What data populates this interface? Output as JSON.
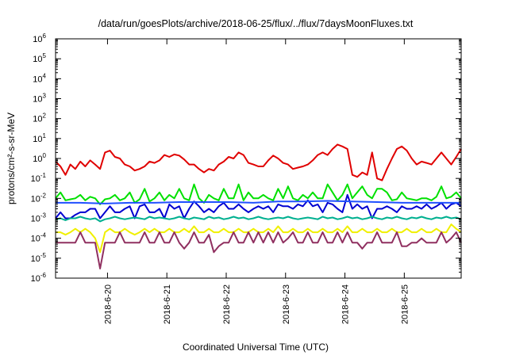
{
  "chart_data": {
    "type": "line",
    "title": "/data/run/goesPlots/archive/2018-06-25/flux/../flux/7daysMoonFluxes.txt",
    "xlabel": "Coordinated Universal Time (UTC)",
    "ylabel": "protons/cm²-s-sr-MeV",
    "y_scale": "log",
    "ylim": [
      1e-06,
      1000000.0
    ],
    "xlim": [
      "2018-06-19 03:00",
      "2018-06-25 23:00"
    ],
    "grid": false,
    "legend": "none",
    "x_ticks": [
      "2018-6-20",
      "2018-6-21",
      "2018-6-22",
      "2018-6-23",
      "2018-6-24",
      "2018-6-25"
    ],
    "y_ticks": [
      {
        "value": 1e-06,
        "base": "10",
        "exp": "-6"
      },
      {
        "value": 1e-05,
        "base": "10",
        "exp": "-5"
      },
      {
        "value": 0.0001,
        "base": "10",
        "exp": "-4"
      },
      {
        "value": 0.001,
        "base": "10",
        "exp": "-3"
      },
      {
        "value": 0.01,
        "base": "10",
        "exp": "-2"
      },
      {
        "value": 0.1,
        "base": "10",
        "exp": "-1"
      },
      {
        "value": 1.0,
        "base": "10",
        "exp": "0"
      },
      {
        "value": 10.0,
        "base": "10",
        "exp": "1"
      },
      {
        "value": 100.0,
        "base": "10",
        "exp": "2"
      },
      {
        "value": 1000.0,
        "base": "10",
        "exp": "3"
      },
      {
        "value": 10000.0,
        "base": "10",
        "exp": "4"
      },
      {
        "value": 100000.0,
        "base": "10",
        "exp": "5"
      },
      {
        "value": 1000000.0,
        "base": "10",
        "exp": "6"
      }
    ],
    "series": [
      {
        "color": "#e00000",
        "x_hours": [
          0,
          2,
          4,
          6,
          8,
          10,
          12,
          14,
          16,
          18,
          20,
          22,
          24,
          26,
          28,
          30,
          32,
          34,
          36,
          38,
          40,
          42,
          44,
          46,
          48,
          50,
          52,
          54,
          56,
          58,
          60,
          62,
          64,
          66,
          68,
          70,
          72,
          74,
          76,
          78,
          80,
          82,
          84,
          86,
          88,
          90,
          92,
          94,
          96,
          98,
          100,
          102,
          104,
          106,
          108,
          110,
          112,
          114,
          116,
          118,
          120,
          122,
          124,
          126,
          128,
          130,
          132,
          134,
          136,
          138,
          140,
          142,
          144,
          146,
          148,
          150,
          152,
          154,
          156,
          158,
          160,
          162,
          164
        ],
        "y": [
          0.7,
          0.4,
          0.15,
          0.5,
          0.3,
          0.7,
          0.4,
          0.8,
          0.5,
          0.3,
          2,
          2.5,
          1.2,
          1,
          0.5,
          0.4,
          0.25,
          0.3,
          0.4,
          0.7,
          0.6,
          0.8,
          1.5,
          1.2,
          1.6,
          1.4,
          0.9,
          0.5,
          0.5,
          0.3,
          0.2,
          0.3,
          0.25,
          0.5,
          0.7,
          1.2,
          1,
          2,
          1.5,
          0.6,
          0.5,
          0.4,
          0.4,
          0.8,
          1.4,
          1,
          0.6,
          0.5,
          0.3,
          0.35,
          0.4,
          0.5,
          0.8,
          1.5,
          2,
          1.5,
          3,
          5,
          4,
          3,
          0.15,
          0.12,
          0.2,
          0.15,
          2,
          0.1,
          0.08,
          0.3,
          1,
          3,
          4,
          2.5,
          1,
          0.5,
          0.7,
          0.6,
          0.5,
          1,
          2,
          1,
          0.5,
          1.2,
          3
        ]
      },
      {
        "color": "#00e000",
        "x_hours": [
          0,
          2,
          4,
          6,
          8,
          10,
          12,
          14,
          16,
          18,
          20,
          22,
          24,
          26,
          28,
          30,
          32,
          34,
          36,
          38,
          40,
          42,
          44,
          46,
          48,
          50,
          52,
          54,
          56,
          58,
          60,
          62,
          64,
          66,
          68,
          70,
          72,
          74,
          76,
          78,
          80,
          82,
          84,
          86,
          88,
          90,
          92,
          94,
          96,
          98,
          100,
          102,
          104,
          106,
          108,
          110,
          112,
          114,
          116,
          118,
          120,
          122,
          124,
          126,
          128,
          130,
          132,
          134,
          136,
          138,
          140,
          142,
          144,
          146,
          148,
          150,
          152,
          154,
          156,
          158,
          160,
          162,
          164
        ],
        "y": [
          0.01,
          0.02,
          0.008,
          0.009,
          0.01,
          0.015,
          0.008,
          0.012,
          0.01,
          0.005,
          0.009,
          0.01,
          0.015,
          0.008,
          0.01,
          0.02,
          0.006,
          0.009,
          0.03,
          0.007,
          0.01,
          0.02,
          0.008,
          0.015,
          0.01,
          0.03,
          0.01,
          0.008,
          0.05,
          0.01,
          0.006,
          0.015,
          0.01,
          0.008,
          0.03,
          0.01,
          0.01,
          0.05,
          0.008,
          0.02,
          0.01,
          0.01,
          0.015,
          0.01,
          0.008,
          0.03,
          0.01,
          0.04,
          0.01,
          0.008,
          0.015,
          0.01,
          0.02,
          0.01,
          0.01,
          0.05,
          0.02,
          0.008,
          0.015,
          0.05,
          0.01,
          0.02,
          0.04,
          0.015,
          0.01,
          0.03,
          0.03,
          0.02,
          0.008,
          0.009,
          0.02,
          0.01,
          0.009,
          0.008,
          0.01,
          0.01,
          0.008,
          0.012,
          0.04,
          0.01,
          0.012,
          0.02,
          0.01
        ]
      },
      {
        "color": "#0000d0",
        "x_hours": [
          0,
          2,
          4,
          6,
          8,
          10,
          12,
          14,
          16,
          18,
          20,
          22,
          24,
          26,
          28,
          30,
          32,
          34,
          36,
          38,
          40,
          42,
          44,
          46,
          48,
          50,
          52,
          54,
          56,
          58,
          60,
          62,
          64,
          66,
          68,
          70,
          72,
          74,
          76,
          78,
          80,
          82,
          84,
          86,
          88,
          90,
          92,
          94,
          96,
          98,
          100,
          102,
          104,
          106,
          108,
          110,
          112,
          114,
          116,
          118,
          120,
          122,
          124,
          126,
          128,
          130,
          132,
          134,
          136,
          138,
          140,
          142,
          144,
          146,
          148,
          150,
          152,
          154,
          156,
          158,
          160,
          162,
          164
        ],
        "y": [
          0.001,
          0.002,
          0.001,
          0.001,
          0.0015,
          0.002,
          0.002,
          0.003,
          0.003,
          0.001,
          0.002,
          0.004,
          0.002,
          0.002,
          0.003,
          0.004,
          0.001,
          0.004,
          0.005,
          0.002,
          0.002,
          0.003,
          0.001,
          0.005,
          0.003,
          0.004,
          0.001,
          0.003,
          0.007,
          0.004,
          0.002,
          0.003,
          0.002,
          0.004,
          0.006,
          0.003,
          0.003,
          0.005,
          0.003,
          0.002,
          0.003,
          0.004,
          0.003,
          0.004,
          0.002,
          0.005,
          0.004,
          0.004,
          0.003,
          0.005,
          0.004,
          0.008,
          0.004,
          0.005,
          0.002,
          0.006,
          0.005,
          0.003,
          0.002,
          0.015,
          0.003,
          0.005,
          0.003,
          0.004,
          0.001,
          0.003,
          0.003,
          0.004,
          0.003,
          0.002,
          0.004,
          0.003,
          0.003,
          0.004,
          0.003,
          0.005,
          0.003,
          0.004,
          0.006,
          0.003,
          0.005,
          0.006,
          0.004
        ]
      },
      {
        "color": "#2050ff",
        "x_hours": [
          0,
          10,
          20,
          30,
          40,
          50,
          60,
          70,
          80,
          90,
          100,
          110,
          120,
          130,
          140,
          150,
          160,
          164
        ],
        "y": [
          0.006,
          0.006,
          0.0055,
          0.006,
          0.006,
          0.0065,
          0.0065,
          0.0065,
          0.006,
          0.007,
          0.007,
          0.0075,
          0.007,
          0.0065,
          0.006,
          0.006,
          0.006,
          0.006
        ]
      },
      {
        "color": "#00b090",
        "x_hours": [
          0,
          2,
          4,
          6,
          8,
          10,
          12,
          14,
          16,
          18,
          20,
          22,
          24,
          26,
          28,
          30,
          32,
          34,
          36,
          38,
          40,
          42,
          44,
          46,
          48,
          50,
          52,
          54,
          56,
          58,
          60,
          62,
          64,
          66,
          68,
          70,
          72,
          74,
          76,
          78,
          80,
          82,
          84,
          86,
          88,
          90,
          92,
          94,
          96,
          98,
          100,
          102,
          104,
          106,
          108,
          110,
          112,
          114,
          116,
          118,
          120,
          122,
          124,
          126,
          128,
          130,
          132,
          134,
          136,
          138,
          140,
          142,
          144,
          146,
          148,
          150,
          152,
          154,
          156,
          158,
          160,
          162,
          164
        ],
        "y": [
          0.0009,
          0.001,
          0.0008,
          0.001,
          0.001,
          0.0012,
          0.001,
          0.0009,
          0.001,
          0.0007,
          0.0009,
          0.001,
          0.0012,
          0.001,
          0.0009,
          0.001,
          0.0011,
          0.001,
          0.0009,
          0.0012,
          0.001,
          0.0011,
          0.001,
          0.0009,
          0.001,
          0.0012,
          0.001,
          0.0009,
          0.0011,
          0.001,
          0.0009,
          0.0012,
          0.001,
          0.0011,
          0.0009,
          0.001,
          0.0012,
          0.001,
          0.0011,
          0.0009,
          0.001,
          0.0012,
          0.001,
          0.0009,
          0.001,
          0.0011,
          0.001,
          0.0012,
          0.001,
          0.0009,
          0.001,
          0.0011,
          0.001,
          0.0009,
          0.0012,
          0.001,
          0.0011,
          0.0009,
          0.001,
          0.0012,
          0.001,
          0.0011,
          0.0009,
          0.001,
          0.0012,
          0.001,
          0.0009,
          0.0011,
          0.001,
          0.0012,
          0.001,
          0.0009,
          0.0011,
          0.001,
          0.0012,
          0.001,
          0.0009,
          0.0011,
          0.001,
          0.0012,
          0.001,
          0.0011,
          0.0009
        ]
      },
      {
        "color": "#f0f000",
        "x_hours": [
          0,
          2,
          4,
          6,
          8,
          10,
          12,
          14,
          16,
          18,
          20,
          22,
          24,
          26,
          28,
          30,
          32,
          34,
          36,
          38,
          40,
          42,
          44,
          46,
          48,
          50,
          52,
          54,
          56,
          58,
          60,
          62,
          64,
          66,
          68,
          70,
          72,
          74,
          76,
          78,
          80,
          82,
          84,
          86,
          88,
          90,
          92,
          94,
          96,
          98,
          100,
          102,
          104,
          106,
          108,
          110,
          112,
          114,
          116,
          118,
          120,
          122,
          124,
          126,
          128,
          130,
          132,
          134,
          136,
          138,
          140,
          142,
          144,
          146,
          148,
          150,
          152,
          154,
          156,
          158,
          160,
          162,
          164
        ],
        "y": [
          0.0002,
          0.0002,
          0.00015,
          0.0002,
          0.0003,
          0.0002,
          0.0003,
          0.0002,
          0.0001,
          2e-05,
          0.0002,
          0.0003,
          0.0002,
          0.0002,
          0.0003,
          0.0002,
          0.00015,
          0.0002,
          0.0003,
          0.0002,
          0.0003,
          0.0002,
          0.0002,
          0.0003,
          0.0002,
          0.0002,
          0.0003,
          0.0002,
          0.0004,
          0.0002,
          0.0002,
          0.0003,
          0.0002,
          0.0002,
          0.0003,
          0.0002,
          0.0002,
          0.0003,
          0.0002,
          0.0002,
          0.0003,
          0.0002,
          0.0002,
          0.0003,
          0.0002,
          0.0004,
          0.0002,
          0.0002,
          0.0003,
          0.0002,
          0.0002,
          0.0003,
          0.0002,
          0.0002,
          0.0003,
          0.0002,
          0.0002,
          0.0003,
          0.0002,
          0.0004,
          0.0002,
          0.0002,
          0.0003,
          0.0002,
          0.0002,
          0.0003,
          0.0002,
          0.0002,
          0.0003,
          0.0002,
          0.0002,
          0.0003,
          0.0002,
          0.0002,
          0.0003,
          0.0002,
          0.0002,
          0.0003,
          0.0002,
          0.0002,
          0.0005,
          0.0003,
          0.0002
        ]
      },
      {
        "color": "#903060",
        "x_hours": [
          0,
          2,
          4,
          6,
          8,
          10,
          12,
          14,
          16,
          18,
          20,
          22,
          24,
          26,
          28,
          30,
          32,
          34,
          36,
          38,
          40,
          42,
          44,
          46,
          48,
          50,
          52,
          54,
          56,
          58,
          60,
          62,
          64,
          66,
          68,
          70,
          72,
          74,
          76,
          78,
          80,
          82,
          84,
          86,
          88,
          90,
          92,
          94,
          96,
          98,
          100,
          102,
          104,
          106,
          108,
          110,
          112,
          114,
          116,
          118,
          120,
          122,
          124,
          126,
          128,
          130,
          132,
          134,
          136,
          138,
          140,
          142,
          144,
          146,
          148,
          150,
          152,
          154,
          156,
          158,
          160,
          162,
          164
        ],
        "y": [
          6e-05,
          6e-05,
          6e-05,
          6e-05,
          6e-05,
          0.0002,
          6e-05,
          6e-05,
          6e-05,
          3e-06,
          6e-05,
          6e-05,
          6e-05,
          0.0002,
          6e-05,
          6e-05,
          6e-05,
          6e-05,
          0.0002,
          6e-05,
          6e-05,
          0.0002,
          6e-05,
          6e-05,
          0.0002,
          6e-05,
          3e-05,
          6e-05,
          0.0002,
          6e-05,
          6e-05,
          0.00015,
          2e-05,
          4e-05,
          6e-05,
          6e-05,
          0.0002,
          6e-05,
          6e-05,
          0.0002,
          6e-05,
          0.0002,
          6e-05,
          0.0002,
          6e-05,
          0.0002,
          6e-05,
          0.0001,
          0.0002,
          6e-05,
          6e-05,
          0.0002,
          6e-05,
          6e-05,
          0.0002,
          6e-05,
          6e-05,
          0.0002,
          6e-05,
          0.0002,
          6e-05,
          6e-05,
          3e-05,
          6e-05,
          6e-05,
          0.0002,
          6e-05,
          6e-05,
          6e-05,
          0.0002,
          4e-05,
          4e-05,
          6e-05,
          6e-05,
          0.0001,
          6e-05,
          6e-05,
          6e-05,
          0.0002,
          6e-05,
          0.0001,
          0.0002,
          6e-05
        ]
      }
    ]
  }
}
